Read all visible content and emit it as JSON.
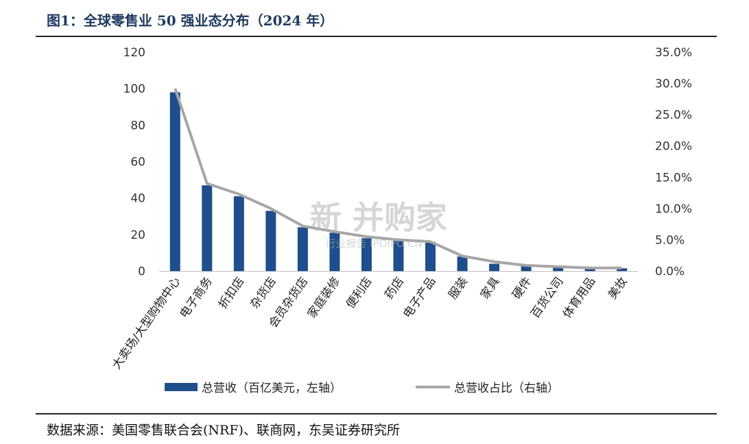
{
  "header": {
    "title": "图1：全球零售业 50 强业态分布（2024 年）"
  },
  "footer": {
    "source": "数据来源：美国零售联合会(NRF)、联商网，东吴证券研究所"
  },
  "watermark": {
    "main": "新 并购家",
    "sub": "行业报告 IPOIPO.CN"
  },
  "colors": {
    "bar": "#1f4e8c",
    "line": "#a6a6a6"
  },
  "chart_data": {
    "type": "bar",
    "categories": [
      "大卖场/大型购物中心",
      "电子商务",
      "折扣店",
      "杂货店",
      "会员杂货店",
      "家庭装修",
      "便利店",
      "药店",
      "电子产品",
      "服装",
      "家具",
      "硬件",
      "百货公司",
      "体育用品",
      "美妆"
    ],
    "series": [
      {
        "name": "总营收（百亿美元，左轴）",
        "type": "bar",
        "axis": "left",
        "values": [
          98,
          47,
          41,
          33,
          24,
          21,
          18,
          17,
          16,
          8,
          4,
          3,
          2,
          1.5,
          1.5
        ]
      },
      {
        "name": "总营收占比（右轴）",
        "type": "line",
        "axis": "right",
        "values": [
          0.292,
          0.14,
          0.123,
          0.1,
          0.072,
          0.063,
          0.055,
          0.05,
          0.047,
          0.024,
          0.015,
          0.009,
          0.007,
          0.005,
          0.005
        ]
      }
    ],
    "y_left": {
      "ylim": [
        0,
        120
      ],
      "ticks": [
        "0",
        "20",
        "40",
        "60",
        "80",
        "100",
        "120"
      ]
    },
    "y_right": {
      "ylim": [
        0,
        0.35
      ],
      "ticks": [
        "0.0%",
        "5.0%",
        "10.0%",
        "15.0%",
        "20.0%",
        "25.0%",
        "30.0%",
        "35.0%"
      ]
    },
    "legend": {
      "position": "bottom"
    },
    "grid": false
  }
}
